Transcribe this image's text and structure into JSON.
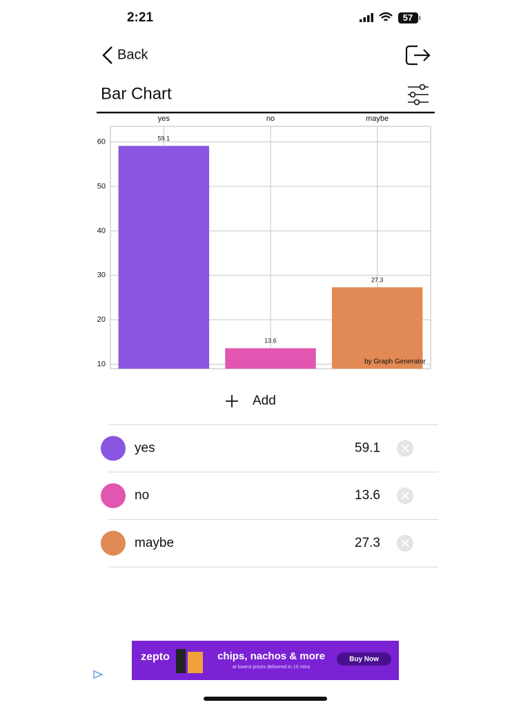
{
  "status_bar": {
    "time": "2:21",
    "battery": "57"
  },
  "nav": {
    "back": "Back"
  },
  "header": {
    "title": "Bar Chart"
  },
  "chart_data": {
    "type": "bar",
    "categories": [
      "yes",
      "no",
      "maybe"
    ],
    "values": [
      59.1,
      13.6,
      27.3
    ],
    "colors": [
      "#8a55e0",
      "#e056b0",
      "#e28a55"
    ],
    "ylim": [
      9,
      63.5
    ],
    "yticks": [
      10,
      20,
      30,
      40,
      50,
      60
    ],
    "grid": true,
    "annotation": "by Graph Generator"
  },
  "add_button": "Add",
  "ad": {
    "brand": "zepto",
    "headline": "chips, nachos & more",
    "tagline": "at lowest prices delivered in 10 mins",
    "cta": "Buy Now"
  }
}
